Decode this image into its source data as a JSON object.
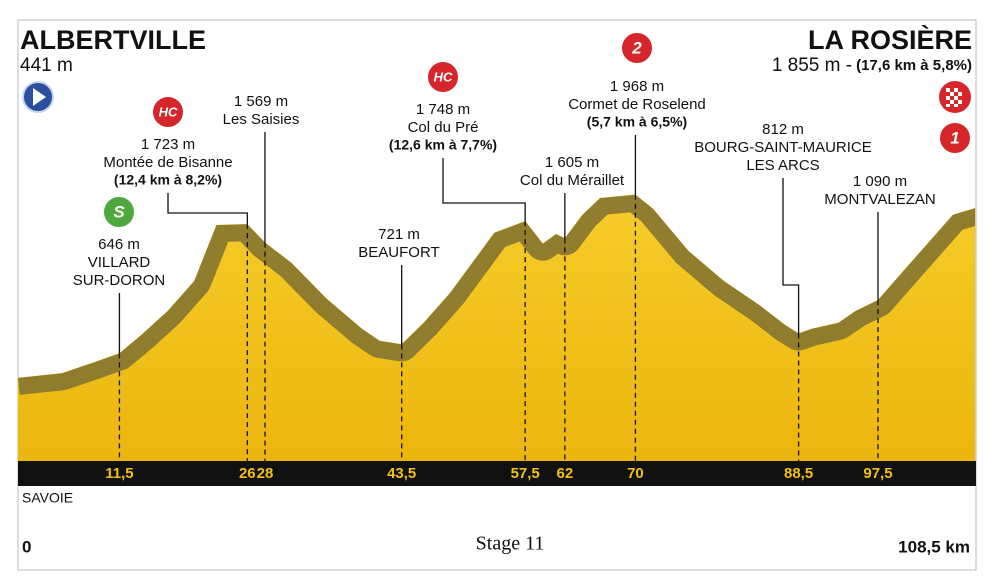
{
  "chart_data": {
    "type": "elevation-profile",
    "start": {
      "name": "ALBERTVILLE",
      "altitude": "441 m"
    },
    "finish": {
      "name": "LA ROSIÈRE",
      "altitude": "1 855 m -",
      "climb": "(17,6 km à 5,8%)",
      "badge": {
        "label": "1",
        "color": "#d7262b"
      }
    },
    "region": "SAVOIE",
    "caption": "Stage 11",
    "xlim": [
      {
        "value": 0,
        "label": "0"
      },
      {
        "value": 108.5,
        "label": "108,5 km"
      }
    ],
    "profile": {
      "km": [
        0,
        5,
        9,
        11.5,
        14,
        17,
        20,
        22.5,
        26,
        28,
        31,
        35,
        39,
        41,
        43.5,
        46,
        49,
        52,
        54,
        57.5,
        59.5,
        61,
        62,
        64,
        66,
        70,
        72,
        76,
        80,
        84,
        87,
        88.5,
        90,
        93,
        95,
        97.5,
        100,
        103,
        106,
        108.5
      ],
      "elevation_m": [
        441,
        480,
        580,
        646,
        800,
        1000,
        1250,
        1715,
        1723,
        1569,
        1400,
        1100,
        850,
        750,
        721,
        900,
        1150,
        1450,
        1650,
        1748,
        1560,
        1640,
        1605,
        1800,
        1940,
        1968,
        1850,
        1500,
        1250,
        1050,
        880,
        812,
        850,
        900,
        1000,
        1090,
        1300,
        1550,
        1800,
        1855
      ],
      "color": "#f2c014",
      "shadow_color": "#857430"
    },
    "waypoints": [
      {
        "km": {
          "value": 11.5,
          "label": "11,5"
        },
        "altitude": "646 m",
        "name": [
          "VILLARD",
          "SUR-DORON"
        ],
        "badge": {
          "label": "S",
          "color": "#4fa83d"
        }
      },
      {
        "km": {
          "value": 26,
          "label": "26"
        },
        "altitude": "1 723 m",
        "name": [
          "Montée de Bisanne"
        ],
        "climb": "(12,4 km à 8,2%)",
        "badge": {
          "label": "HC",
          "color": "#d7262b"
        }
      },
      {
        "km": {
          "value": 28,
          "label": "28"
        },
        "altitude": "1 569 m",
        "name": [
          "Les Saisies"
        ]
      },
      {
        "km": {
          "value": 43.5,
          "label": "43,5"
        },
        "altitude": "721 m",
        "name": [
          "BEAUFORT"
        ]
      },
      {
        "km": {
          "value": 57.5,
          "label": "57,5"
        },
        "altitude": "1 748 m",
        "name": [
          "Col du Pré"
        ],
        "climb": "(12,6 km à 7,7%)",
        "badge": {
          "label": "HC",
          "color": "#d7262b"
        }
      },
      {
        "km": {
          "value": 62,
          "label": "62"
        },
        "altitude": "1 605 m",
        "name": [
          "Col du Méraillet"
        ]
      },
      {
        "km": {
          "value": 70,
          "label": "70"
        },
        "altitude": "1 968 m",
        "name": [
          "Cormet de Roselend"
        ],
        "climb": "(5,7 km à 6,5%)",
        "badge": {
          "label": "2",
          "color": "#d7262b"
        }
      },
      {
        "km": {
          "value": 88.5,
          "label": "88,5"
        },
        "altitude": "812 m",
        "name": [
          "BOURG-SAINT-MAURICE",
          "LES ARCS"
        ]
      },
      {
        "km": {
          "value": 97.5,
          "label": "97,5"
        },
        "altitude": "1 090 m",
        "name": [
          "MONTVALEZAN"
        ]
      }
    ]
  }
}
